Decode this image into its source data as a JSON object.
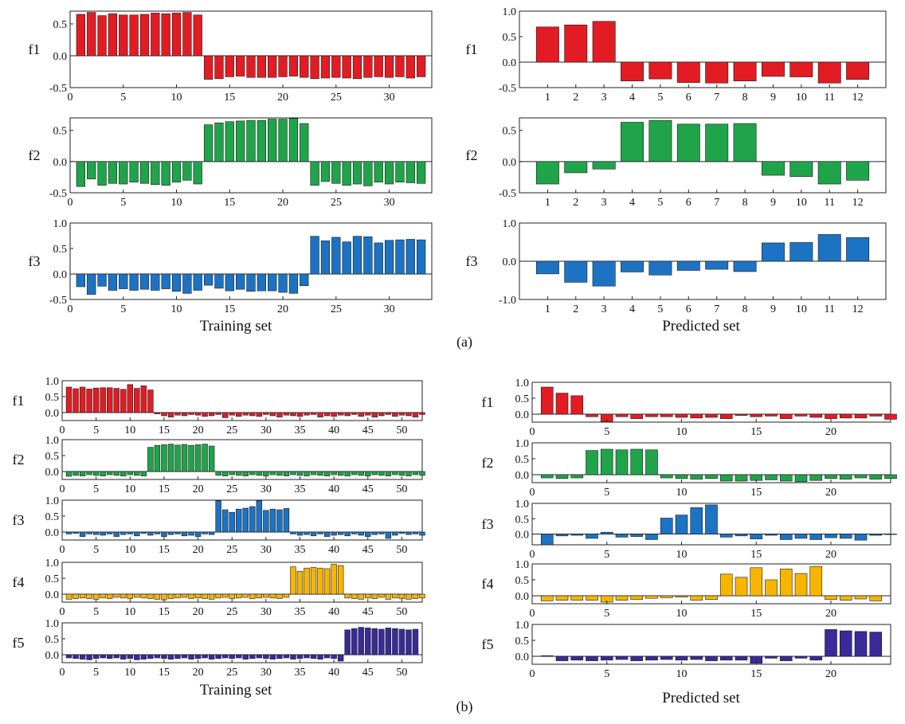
{
  "panel_labels": {
    "a": "(a)",
    "b": "(b)"
  },
  "xlabels": {
    "training": "Training set",
    "predicted": "Predicted set"
  },
  "colors": {
    "f1": "#e31c23",
    "f2": "#1fa44a",
    "f3": "#1c73c4",
    "f4": "#f7b500",
    "f5": "#3a2a9a"
  },
  "chart_data": [
    {
      "id": "a-train-f1",
      "type": "bar",
      "ylabel": "f1",
      "xlabel": "",
      "color": "#e31c23",
      "ylim": [
        -0.5,
        0.7
      ],
      "yticks": [
        -0.5,
        0.0,
        0.5
      ],
      "xlim": [
        0,
        34
      ],
      "xticks": [
        0,
        5,
        10,
        15,
        20,
        25,
        30
      ],
      "values": [
        0.65,
        0.68,
        0.63,
        0.66,
        0.64,
        0.64,
        0.65,
        0.67,
        0.66,
        0.67,
        0.68,
        0.64,
        -0.37,
        -0.36,
        -0.33,
        -0.32,
        -0.34,
        -0.34,
        -0.34,
        -0.33,
        -0.32,
        -0.34,
        -0.36,
        -0.35,
        -0.34,
        -0.35,
        -0.36,
        -0.34,
        -0.33,
        -0.34,
        -0.33,
        -0.35,
        -0.33
      ]
    },
    {
      "id": "a-train-f2",
      "type": "bar",
      "ylabel": "f2",
      "xlabel": "",
      "color": "#1fa44a",
      "ylim": [
        -0.5,
        0.7
      ],
      "yticks": [
        -0.5,
        0.0,
        0.5
      ],
      "xlim": [
        0,
        34
      ],
      "xticks": [
        0,
        5,
        10,
        15,
        20,
        25,
        30
      ],
      "values": [
        -0.4,
        -0.28,
        -0.38,
        -0.35,
        -0.36,
        -0.33,
        -0.35,
        -0.37,
        -0.38,
        -0.33,
        -0.3,
        -0.36,
        0.59,
        0.62,
        0.64,
        0.65,
        0.66,
        0.66,
        0.68,
        0.68,
        0.69,
        0.61,
        -0.38,
        -0.32,
        -0.35,
        -0.38,
        -0.36,
        -0.39,
        -0.33,
        -0.36,
        -0.33,
        -0.34,
        -0.35
      ]
    },
    {
      "id": "a-train-f3",
      "type": "bar",
      "ylabel": "f3",
      "xlabel": "",
      "color": "#1c73c4",
      "ylim": [
        -0.5,
        1.0
      ],
      "yticks": [
        -0.5,
        0.0,
        0.5,
        1.0
      ],
      "xlim": [
        0,
        34
      ],
      "xticks": [
        0,
        5,
        10,
        15,
        20,
        25,
        30
      ],
      "values": [
        -0.25,
        -0.4,
        -0.24,
        -0.32,
        -0.29,
        -0.32,
        -0.3,
        -0.32,
        -0.29,
        -0.34,
        -0.38,
        -0.32,
        -0.22,
        -0.28,
        -0.33,
        -0.3,
        -0.34,
        -0.33,
        -0.33,
        -0.36,
        -0.38,
        -0.23,
        0.74,
        0.65,
        0.72,
        0.63,
        0.74,
        0.73,
        0.61,
        0.66,
        0.67,
        0.68,
        0.67
      ]
    },
    {
      "id": "a-pred-f1",
      "type": "bar",
      "ylabel": "f1",
      "xlabel": "",
      "color": "#e31c23",
      "ylim": [
        -0.5,
        1.0
      ],
      "yticks": [
        -0.5,
        0.0,
        0.5,
        1.0
      ],
      "xlim": [
        0,
        13
      ],
      "xticks": [
        1,
        2,
        3,
        4,
        5,
        6,
        7,
        8,
        9,
        10,
        11,
        12
      ],
      "values": [
        0.69,
        0.73,
        0.8,
        -0.37,
        -0.33,
        -0.4,
        -0.41,
        -0.37,
        -0.28,
        -0.29,
        -0.41,
        -0.34
      ]
    },
    {
      "id": "a-pred-f2",
      "type": "bar",
      "ylabel": "f2",
      "xlabel": "",
      "color": "#1fa44a",
      "ylim": [
        -0.5,
        0.7
      ],
      "yticks": [
        -0.5,
        0.0,
        0.5
      ],
      "xlim": [
        0,
        13
      ],
      "xticks": [
        1,
        2,
        3,
        4,
        5,
        6,
        7,
        8,
        9,
        10,
        11,
        12
      ],
      "values": [
        -0.36,
        -0.18,
        -0.12,
        0.63,
        0.66,
        0.6,
        0.6,
        0.61,
        -0.22,
        -0.24,
        -0.36,
        -0.3
      ]
    },
    {
      "id": "a-pred-f3",
      "type": "bar",
      "ylabel": "f3",
      "xlabel": "",
      "color": "#1c73c4",
      "ylim": [
        -1.0,
        1.0
      ],
      "yticks": [
        -1.0,
        0.0,
        1.0
      ],
      "xlim": [
        0,
        13
      ],
      "xticks": [
        1,
        2,
        3,
        4,
        5,
        6,
        7,
        8,
        9,
        10,
        11,
        12
      ],
      "values": [
        -0.33,
        -0.55,
        -0.65,
        -0.28,
        -0.36,
        -0.24,
        -0.21,
        -0.27,
        0.48,
        0.49,
        0.7,
        0.62
      ]
    },
    {
      "id": "b-train-f1",
      "type": "bar",
      "ylabel": "f1",
      "xlabel": "",
      "color": "#e31c23",
      "ylim": [
        -0.25,
        1.0
      ],
      "yticks": [
        0.0,
        0.5,
        1.0
      ],
      "ytick_labels": [
        "0.0",
        "0.5",
        "1.0"
      ],
      "xlim": [
        0,
        53
      ],
      "xticks": [
        0,
        5,
        10,
        15,
        20,
        25,
        30,
        35,
        40,
        45,
        50
      ],
      "values": [
        0.8,
        0.75,
        0.8,
        0.74,
        0.77,
        0.78,
        0.78,
        0.76,
        0.73,
        0.88,
        0.76,
        0.84,
        0.71,
        -0.04,
        -0.1,
        -0.14,
        -0.08,
        -0.1,
        -0.06,
        -0.08,
        -0.12,
        -0.1,
        -0.06,
        -0.16,
        -0.08,
        -0.12,
        -0.08,
        -0.1,
        -0.12,
        -0.06,
        -0.1,
        -0.14,
        -0.08,
        -0.1,
        -0.12,
        -0.08,
        -0.06,
        -0.14,
        -0.1,
        -0.12,
        -0.08,
        -0.1,
        -0.06,
        -0.12,
        -0.08,
        -0.14,
        -0.1,
        -0.06,
        -0.12,
        -0.08,
        -0.1,
        -0.14,
        -0.06
      ]
    },
    {
      "id": "b-train-f2",
      "type": "bar",
      "ylabel": "f2",
      "xlabel": "",
      "color": "#1fa44a",
      "ylim": [
        -0.25,
        1.0
      ],
      "yticks": [
        0.0,
        0.5,
        1.0
      ],
      "ytick_labels": [
        "0.0",
        "0.5",
        "1.0"
      ],
      "xlim": [
        0,
        53
      ],
      "xticks": [
        0,
        5,
        10,
        15,
        20,
        25,
        30,
        35,
        40,
        45,
        50
      ],
      "values": [
        -0.15,
        -0.12,
        -0.14,
        -0.1,
        -0.12,
        -0.14,
        -0.1,
        -0.12,
        -0.14,
        -0.1,
        -0.12,
        -0.14,
        0.76,
        0.82,
        0.84,
        0.86,
        0.83,
        0.85,
        0.82,
        0.84,
        0.86,
        0.8,
        -0.12,
        -0.14,
        -0.1,
        -0.12,
        -0.14,
        -0.1,
        -0.12,
        -0.14,
        -0.1,
        -0.12,
        -0.14,
        -0.1,
        -0.12,
        -0.14,
        -0.1,
        -0.12,
        -0.14,
        -0.1,
        -0.12,
        -0.14,
        -0.1,
        -0.12,
        -0.14,
        -0.1,
        -0.12,
        -0.14,
        -0.1,
        -0.12,
        -0.14,
        -0.1,
        -0.12
      ]
    },
    {
      "id": "b-train-f3",
      "type": "bar",
      "ylabel": "f3",
      "xlabel": "",
      "color": "#1c73c4",
      "ylim": [
        -0.25,
        1.0
      ],
      "yticks": [
        0.0,
        0.5,
        1.0
      ],
      "ytick_labels": [
        "0.0",
        "0.5",
        "1.0"
      ],
      "xlim": [
        0,
        53
      ],
      "xticks": [
        0,
        5,
        10,
        15,
        20,
        25,
        30,
        35,
        40,
        45,
        50
      ],
      "values": [
        -0.06,
        -0.04,
        -0.14,
        -0.06,
        -0.08,
        -0.1,
        -0.06,
        -0.14,
        -0.08,
        -0.06,
        -0.12,
        -0.04,
        -0.1,
        -0.06,
        -0.14,
        -0.08,
        -0.06,
        -0.12,
        -0.1,
        -0.14,
        -0.06,
        -0.08,
        0.98,
        0.7,
        0.62,
        0.72,
        0.75,
        0.8,
        0.98,
        0.68,
        0.72,
        0.7,
        0.74,
        -0.06,
        -0.1,
        -0.08,
        -0.12,
        -0.06,
        -0.14,
        -0.1,
        -0.08,
        -0.12,
        -0.06,
        -0.1,
        -0.14,
        -0.08,
        -0.06,
        -0.2,
        -0.1,
        -0.04,
        -0.08,
        -0.06,
        -0.1
      ]
    },
    {
      "id": "b-train-f4",
      "type": "bar",
      "ylabel": "f4",
      "xlabel": "",
      "color": "#f7b500",
      "ylim": [
        -0.25,
        1.0
      ],
      "yticks": [
        0.0,
        0.5,
        1.0
      ],
      "ytick_labels": [
        "0.0",
        "0.5",
        "1.0"
      ],
      "xlim": [
        0,
        53
      ],
      "xticks": [
        0,
        5,
        10,
        15,
        20,
        25,
        30,
        35,
        40,
        45,
        50
      ],
      "values": [
        -0.16,
        -0.14,
        -0.12,
        -0.14,
        -0.16,
        -0.12,
        -0.14,
        -0.1,
        -0.12,
        -0.14,
        -0.1,
        -0.12,
        -0.14,
        -0.16,
        -0.18,
        -0.14,
        -0.12,
        -0.1,
        -0.14,
        -0.12,
        -0.14,
        -0.16,
        -0.12,
        -0.1,
        -0.14,
        -0.12,
        -0.1,
        -0.14,
        -0.12,
        -0.1,
        -0.12,
        -0.14,
        -0.1,
        0.86,
        0.72,
        0.82,
        0.84,
        0.82,
        0.8,
        0.94,
        0.9,
        -0.12,
        -0.14,
        -0.16,
        -0.12,
        -0.14,
        -0.1,
        -0.16,
        -0.12,
        -0.14,
        -0.16,
        -0.14,
        -0.12
      ]
    },
    {
      "id": "b-train-f5",
      "type": "bar",
      "ylabel": "f5",
      "xlabel": "",
      "color": "#3a2a9a",
      "ylim": [
        -0.25,
        1.0
      ],
      "yticks": [
        0.0,
        0.5,
        1.0
      ],
      "ytick_labels": [
        "0.0",
        "0.5",
        "1.0"
      ],
      "xlim": [
        0,
        53
      ],
      "xticks": [
        0,
        5,
        10,
        15,
        20,
        25,
        30,
        35,
        40,
        45,
        50
      ],
      "values": [
        -0.1,
        -0.12,
        -0.14,
        -0.16,
        -0.12,
        -0.1,
        -0.12,
        -0.1,
        -0.14,
        -0.12,
        -0.16,
        -0.14,
        -0.12,
        -0.1,
        -0.12,
        -0.14,
        -0.12,
        -0.1,
        -0.14,
        -0.12,
        -0.1,
        -0.14,
        -0.12,
        -0.1,
        -0.12,
        -0.1,
        -0.14,
        -0.12,
        -0.1,
        -0.12,
        -0.14,
        -0.12,
        -0.1,
        -0.14,
        -0.12,
        -0.1,
        -0.12,
        -0.14,
        -0.1,
        -0.12,
        -0.2,
        0.78,
        0.82,
        0.86,
        0.84,
        0.82,
        0.8,
        0.84,
        0.82,
        0.8,
        0.78,
        0.8
      ]
    },
    {
      "id": "b-pred-f1",
      "type": "bar",
      "ylabel": "f1",
      "xlabel": "",
      "color": "#e31c23",
      "ylim": [
        -0.25,
        1.0
      ],
      "yticks": [
        0.0,
        0.5,
        1.0
      ],
      "ytick_labels": [
        "0.0",
        "0.5",
        "1.0"
      ],
      "xlim": [
        0,
        24
      ],
      "xticks": [
        0,
        5,
        10,
        15,
        20
      ],
      "values": [
        0.85,
        0.66,
        0.58,
        -0.08,
        -0.24,
        -0.08,
        -0.14,
        -0.08,
        -0.08,
        -0.1,
        -0.12,
        -0.1,
        -0.14,
        -0.04,
        -0.08,
        -0.06,
        -0.14,
        -0.06,
        -0.1,
        -0.14,
        -0.12,
        -0.12,
        -0.06,
        -0.16
      ]
    },
    {
      "id": "b-pred-f2",
      "type": "bar",
      "ylabel": "f2",
      "xlabel": "",
      "color": "#1fa44a",
      "ylim": [
        -0.25,
        1.0
      ],
      "yticks": [
        0.0,
        0.5,
        1.0
      ],
      "ytick_labels": [
        "0.0",
        "0.5",
        "1.0"
      ],
      "xlim": [
        0,
        24
      ],
      "xticks": [
        0,
        5,
        10,
        15,
        20
      ],
      "values": [
        -0.1,
        -0.12,
        -0.1,
        0.76,
        0.8,
        0.78,
        0.8,
        0.78,
        -0.1,
        -0.12,
        -0.14,
        -0.12,
        -0.2,
        -0.2,
        -0.18,
        -0.16,
        -0.2,
        -0.22,
        -0.18,
        -0.12,
        -0.14,
        -0.1,
        -0.14,
        -0.12
      ]
    },
    {
      "id": "b-pred-f3",
      "type": "bar",
      "ylabel": "f3",
      "xlabel": "",
      "color": "#1c73c4",
      "ylim": [
        -0.35,
        1.0
      ],
      "yticks": [
        0.0,
        0.5,
        1.0
      ],
      "ytick_labels": [
        "0.0",
        "0.5",
        "1.0"
      ],
      "xlim": [
        0,
        24
      ],
      "xticks": [
        0,
        5,
        10,
        15,
        20
      ],
      "values": [
        -0.35,
        -0.06,
        -0.04,
        -0.14,
        0.06,
        -0.1,
        -0.08,
        -0.18,
        0.52,
        0.62,
        0.86,
        0.95,
        -0.1,
        -0.06,
        -0.16,
        -0.04,
        -0.18,
        -0.14,
        -0.18,
        -0.12,
        -0.14,
        -0.2,
        -0.04,
        0.0
      ]
    },
    {
      "id": "b-pred-f4",
      "type": "bar",
      "ylabel": "f4",
      "xlabel": "",
      "color": "#f7b500",
      "ylim": [
        -0.25,
        1.0
      ],
      "yticks": [
        0.0,
        0.5,
        1.0
      ],
      "ytick_labels": [
        "0.0",
        "0.5",
        "1.0"
      ],
      "xlim": [
        0,
        24
      ],
      "xticks": [
        0,
        5,
        10,
        15,
        20
      ],
      "values": [
        -0.16,
        -0.14,
        -0.14,
        -0.14,
        -0.2,
        -0.14,
        -0.12,
        -0.08,
        -0.06,
        -0.04,
        -0.14,
        -0.12,
        0.68,
        0.58,
        0.88,
        0.5,
        0.84,
        0.7,
        0.92,
        -0.12,
        -0.14,
        -0.1,
        -0.16
      ]
    },
    {
      "id": "b-pred-f5",
      "type": "bar",
      "ylabel": "f5",
      "xlabel": "",
      "color": "#3a2a9a",
      "ylim": [
        -0.25,
        1.0
      ],
      "yticks": [
        0.0,
        0.5,
        1.0
      ],
      "ytick_labels": [
        "0.0",
        "0.5",
        "1.0"
      ],
      "xlim": [
        0,
        24
      ],
      "xticks": [
        0,
        5,
        10,
        15,
        20
      ],
      "values": [
        0.02,
        -0.14,
        -0.12,
        -0.14,
        -0.12,
        -0.1,
        -0.14,
        -0.12,
        -0.1,
        -0.12,
        -0.1,
        -0.14,
        -0.12,
        -0.12,
        -0.22,
        -0.06,
        -0.14,
        -0.06,
        -0.12,
        0.84,
        0.8,
        0.78,
        0.76
      ]
    }
  ]
}
